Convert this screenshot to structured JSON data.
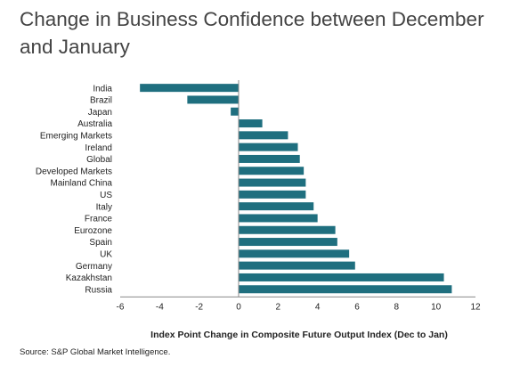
{
  "title": "Change in Business Confidence between December and January",
  "source": "Source: S&P Global Market Intelligence.",
  "chart_data": {
    "type": "bar",
    "orientation": "horizontal",
    "title": "Change in Business Confidence between December and January",
    "xlabel": "Index Point Change in Composite Future Output Index (Dec to Jan)",
    "ylabel": "",
    "xlim": [
      -6,
      12
    ],
    "xticks": [
      -6,
      -4,
      -2,
      0,
      2,
      4,
      6,
      8,
      10,
      12
    ],
    "grid": false,
    "legend": "none",
    "bar_color": "#1f6f7f",
    "categories": [
      "India",
      "Brazil",
      "Japan",
      "Australia",
      "Emerging Markets",
      "Ireland",
      "Global",
      "Developed Markets",
      "Mainland China",
      "US",
      "Italy",
      "France",
      "Eurozone",
      "Spain",
      "UK",
      "Germany",
      "Kazakhstan",
      "Russia"
    ],
    "values": [
      -5.0,
      -2.6,
      -0.4,
      1.2,
      2.5,
      3.0,
      3.1,
      3.3,
      3.4,
      3.4,
      3.8,
      4.0,
      4.9,
      5.0,
      5.6,
      5.9,
      10.4,
      10.8
    ]
  }
}
